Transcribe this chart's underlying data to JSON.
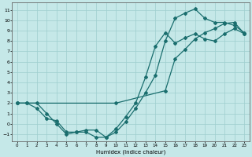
{
  "xlabel": "Humidex (Indice chaleur)",
  "background_color": "#c5e8e8",
  "grid_color": "#9ecece",
  "line_color": "#1a6e6e",
  "xlim": [
    -0.5,
    23.5
  ],
  "ylim": [
    -1.7,
    11.7
  ],
  "xticks": [
    0,
    1,
    2,
    3,
    4,
    5,
    6,
    7,
    8,
    9,
    10,
    11,
    12,
    13,
    14,
    15,
    16,
    17,
    18,
    19,
    20,
    21,
    22,
    23
  ],
  "yticks": [
    -1,
    0,
    1,
    2,
    3,
    4,
    5,
    6,
    7,
    8,
    9,
    10,
    11
  ],
  "line1_x": [
    0,
    1,
    2,
    3,
    4,
    5,
    6,
    7,
    8,
    9,
    10,
    11,
    12,
    13,
    14,
    15,
    16,
    17,
    18,
    19,
    20,
    21,
    22,
    23
  ],
  "line1_y": [
    2.0,
    2.0,
    1.5,
    0.5,
    0.3,
    -0.8,
    -0.8,
    -0.6,
    -0.6,
    -1.3,
    -0.8,
    0.2,
    1.5,
    3.0,
    4.7,
    8.0,
    10.2,
    10.7,
    11.1,
    10.2,
    9.8,
    9.8,
    9.5,
    8.8
  ],
  "line2_x": [
    0,
    1,
    2,
    3,
    4,
    5,
    6,
    7,
    8,
    9,
    10,
    11,
    12,
    13,
    14,
    15,
    16,
    17,
    18,
    19,
    20,
    21,
    22,
    23
  ],
  "line2_y": [
    2.0,
    2.0,
    2.0,
    1.0,
    0.0,
    -1.0,
    -0.8,
    -0.8,
    -1.3,
    -1.3,
    -0.5,
    0.7,
    2.0,
    4.5,
    7.5,
    8.8,
    7.8,
    8.3,
    8.7,
    8.2,
    8.0,
    8.7,
    9.2,
    8.7
  ],
  "line3_x": [
    0,
    10,
    15,
    16,
    17,
    18,
    19,
    20,
    21,
    22,
    23
  ],
  "line3_y": [
    2.0,
    2.0,
    3.2,
    6.3,
    7.2,
    8.2,
    8.8,
    9.2,
    9.7,
    9.8,
    8.7
  ]
}
